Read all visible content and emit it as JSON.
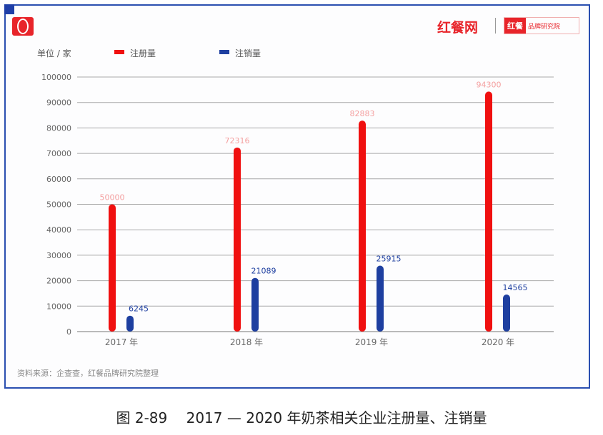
{
  "logo_text": "红餐网",
  "logo_sub": [
    "红餐",
    "品牌研究院"
  ],
  "unit_label": "单位 / 家",
  "source": "资料来源：企查查，红餐品牌研究院整理",
  "caption": "图 2-89　 2017 — 2020 年奶茶相关企业注册量、注销量",
  "chart_data": {
    "type": "bar",
    "categories": [
      "2017 年",
      "2018 年",
      "2019 年",
      "2020 年"
    ],
    "series": [
      {
        "name": "注册量",
        "color": "#f01010",
        "values": [
          50000,
          72316,
          82883,
          94300
        ]
      },
      {
        "name": "注销量",
        "color": "#1e3fa0",
        "values": [
          6245,
          21089,
          25915,
          14565
        ]
      }
    ],
    "ylim": [
      0,
      100000
    ],
    "yticks": [
      0,
      10000,
      20000,
      30000,
      40000,
      50000,
      60000,
      70000,
      80000,
      90000,
      100000
    ],
    "grid": true,
    "legend": "top-left",
    "ylabel": "单位 / 家"
  }
}
